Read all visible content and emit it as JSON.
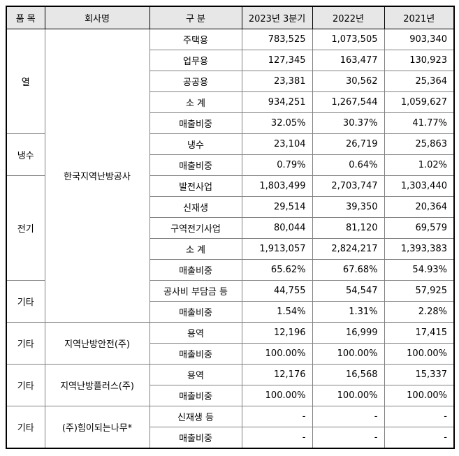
{
  "colors": {
    "header_bg": "#e7e7e7",
    "grid_line": "#808080",
    "outer_border": "#000000",
    "text": "#000000",
    "page_bg": "#ffffff"
  },
  "table": {
    "columns": [
      "품 목",
      "회사명",
      "구 분",
      "2023년 3분기",
      "2022년",
      "2021년"
    ],
    "sections": [
      {
        "company": "한국지역난방공사",
        "groups": [
          {
            "item": "열",
            "rows": [
              {
                "category": "주택용",
                "values": [
                  "783,525",
                  "1,073,505",
                  "903,340"
                ]
              },
              {
                "category": "업무용",
                "values": [
                  "127,345",
                  "163,477",
                  "130,923"
                ]
              },
              {
                "category": "공공용",
                "values": [
                  "23,381",
                  "30,562",
                  "25,364"
                ]
              },
              {
                "category": "소 계",
                "values": [
                  "934,251",
                  "1,267,544",
                  "1,059,627"
                ]
              },
              {
                "category": "매출비중",
                "values": [
                  "32.05%",
                  "30.37%",
                  "41.77%"
                ]
              }
            ]
          },
          {
            "item": "냉수",
            "rows": [
              {
                "category": "냉수",
                "values": [
                  "23,104",
                  "26,719",
                  "25,863"
                ]
              },
              {
                "category": "매출비중",
                "values": [
                  "0.79%",
                  "0.64%",
                  "1.02%"
                ]
              }
            ]
          },
          {
            "item": "전기",
            "rows": [
              {
                "category": "발전사업",
                "values": [
                  "1,803,499",
                  "2,703,747",
                  "1,303,440"
                ]
              },
              {
                "category": "신재생",
                "values": [
                  "29,514",
                  "39,350",
                  "20,364"
                ]
              },
              {
                "category": "구역전기사업",
                "values": [
                  "80,044",
                  "81,120",
                  "69,579"
                ]
              },
              {
                "category": "소 계",
                "values": [
                  "1,913,057",
                  "2,824,217",
                  "1,393,383"
                ]
              },
              {
                "category": "매출비중",
                "values": [
                  "65.62%",
                  "67.68%",
                  "54.93%"
                ]
              }
            ]
          },
          {
            "item": "기타",
            "rows": [
              {
                "category": "공사비 부담금 등",
                "values": [
                  "44,755",
                  "54,547",
                  "57,925"
                ]
              },
              {
                "category": "매출비중",
                "values": [
                  "1.54%",
                  "1.31%",
                  "2.28%"
                ]
              }
            ]
          }
        ]
      },
      {
        "company": "지역난방안전(주)",
        "groups": [
          {
            "item": "기타",
            "rows": [
              {
                "category": "용역",
                "values": [
                  "12,196",
                  "16,999",
                  "17,415"
                ]
              },
              {
                "category": "매출비중",
                "values": [
                  "100.00%",
                  "100.00%",
                  "100.00%"
                ]
              }
            ]
          }
        ]
      },
      {
        "company": "지역난방플러스(주)",
        "groups": [
          {
            "item": "기타",
            "rows": [
              {
                "category": "용역",
                "values": [
                  "12,176",
                  "16,568",
                  "15,337"
                ]
              },
              {
                "category": "매출비중",
                "values": [
                  "100.00%",
                  "100.00%",
                  "100.00%"
                ]
              }
            ]
          }
        ]
      },
      {
        "company": "(주)힘이되는나무*",
        "groups": [
          {
            "item": "기타",
            "rows": [
              {
                "category": "신재생 등",
                "values": [
                  "-",
                  "-",
                  "-"
                ]
              },
              {
                "category": "매출비중",
                "values": [
                  "-",
                  "-",
                  "-"
                ]
              }
            ]
          }
        ]
      }
    ]
  }
}
